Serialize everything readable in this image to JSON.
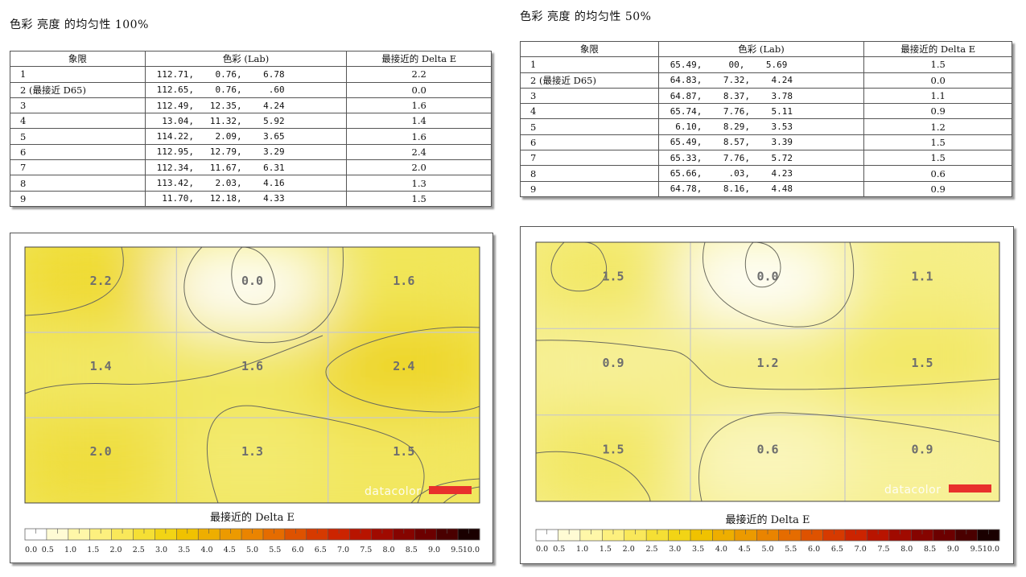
{
  "panels": [
    {
      "title": "色彩 亮度 的均匀性 100%",
      "table": {
        "headers": [
          "象限",
          "色彩 (Lab)",
          "最接近的 Delta E"
        ],
        "rows": [
          [
            "1",
            "112.71,    0.76,    6.78",
            "2.2"
          ],
          [
            "2 (最接近 D65)",
            "112.65,    0.76,     .60",
            "0.0"
          ],
          [
            "3",
            "112.49,   12.35,    4.24",
            "1.6"
          ],
          [
            "4",
            " 13.04,   11.32,    5.92",
            "1.4"
          ],
          [
            "5",
            "114.22,    2.09,    3.65",
            "1.6"
          ],
          [
            "6",
            "112.95,   12.79,    3.29",
            "2.4"
          ],
          [
            "7",
            "112.34,   11.67,    6.31",
            "2.0"
          ],
          [
            "8",
            "113.42,    2.03,    4.16",
            "1.3"
          ],
          [
            "9",
            " 11.70,   12.18,    4.33",
            "1.5"
          ]
        ]
      }
    },
    {
      "title": "色彩 亮度 的均匀性 50%",
      "table": {
        "headers": [
          "象限",
          "色彩 (Lab)",
          "最接近的 Delta E"
        ],
        "rows": [
          [
            "1",
            "65.49,     00,    5.69",
            "1.5"
          ],
          [
            "2 (最接近 D65)",
            "64.83,    7.32,    4.24",
            "0.0"
          ],
          [
            "3",
            "64.87,    8.37,    3.78",
            "1.1"
          ],
          [
            "4",
            "65.74,    7.76,    5.11",
            "0.9"
          ],
          [
            "5",
            " 6.10,    8.29,    3.53",
            "1.2"
          ],
          [
            "6",
            "65.49,    8.57,    3.39",
            "1.5"
          ],
          [
            "7",
            "65.33,    7.76,    5.72",
            "1.5"
          ],
          [
            "8",
            "65.66,     .03,    4.23",
            "0.6"
          ],
          [
            "9",
            "64.78,    8.16,    4.48",
            "0.9"
          ]
        ]
      }
    }
  ],
  "chart_data": [
    {
      "type": "heatmap",
      "title": "色彩 亮度 的均匀性 100%",
      "rows": 3,
      "cols": 3,
      "values": [
        [
          2.2,
          0.0,
          1.6
        ],
        [
          1.4,
          1.6,
          2.4
        ],
        [
          2.0,
          1.3,
          1.5
        ]
      ],
      "labels": [
        [
          "2.2",
          "0.0",
          "1.6"
        ],
        [
          "1.4",
          "1.6",
          "2.4"
        ],
        [
          "2.0",
          "1.3",
          "1.5"
        ]
      ],
      "legend_title": "最接近的 Delta E",
      "scale_ticks": [
        "0.0",
        "0.5",
        "1.0",
        "1.5",
        "2.0",
        "2.5",
        "3.0",
        "3.5",
        "4.0",
        "4.5",
        "5.0",
        "5.5",
        "6.0",
        "6.5",
        "7.0",
        "7.5",
        "8.0",
        "8.5",
        "9.0",
        "9.5",
        "10.0"
      ],
      "brand": "datacolor",
      "brand_color": "#e8302c"
    },
    {
      "type": "heatmap",
      "title": "色彩 亮度 的均匀性 50%",
      "rows": 3,
      "cols": 3,
      "values": [
        [
          1.5,
          0.0,
          1.1
        ],
        [
          0.9,
          1.2,
          1.5
        ],
        [
          1.5,
          0.6,
          0.9
        ]
      ],
      "labels": [
        [
          "1.5",
          "0.0",
          "1.1"
        ],
        [
          "0.9",
          "1.2",
          "1.5"
        ],
        [
          "1.5",
          "0.6",
          "0.9"
        ]
      ],
      "legend_title": "最接近的 Delta E",
      "scale_ticks": [
        "0.0",
        "0.5",
        "1.0",
        "1.5",
        "2.0",
        "2.5",
        "3.0",
        "3.5",
        "4.0",
        "4.5",
        "5.0",
        "5.5",
        "6.0",
        "6.5",
        "7.0",
        "7.5",
        "8.0",
        "8.5",
        "9.0",
        "9.5",
        "10.0"
      ],
      "brand": "datacolor",
      "brand_color": "#e8302c"
    }
  ],
  "scale_colors": [
    "#ffffff",
    "#fffbd4",
    "#fff7a8",
    "#fdf07e",
    "#f9e85a",
    "#f5df34",
    "#f2d415",
    "#f0c200",
    "#eeae00",
    "#ec9a00",
    "#ea8400",
    "#e56c00",
    "#de5200",
    "#d63a00",
    "#cc2400",
    "#b81400",
    "#a00a00",
    "#860400",
    "#6c0000",
    "#4a0000",
    "#1a0000"
  ]
}
